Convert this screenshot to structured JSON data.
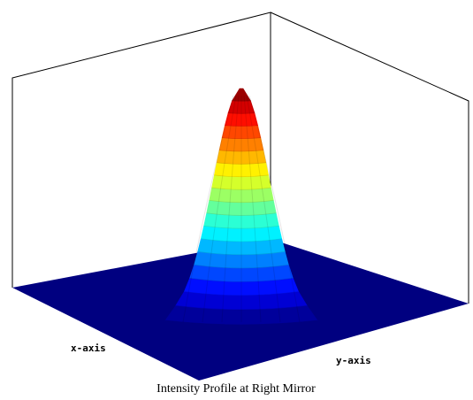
{
  "chart_data": {
    "type": "surface",
    "title": "Intensity Profile at Right Mirror",
    "xlabel": "x-axis",
    "ylabel": "y-axis",
    "zlabel": "",
    "surface": "gaussian-like peak centered on grid, flat zero floor elsewhere",
    "colormap": "jet",
    "colormap_colors": [
      "#00007f",
      "#0000ff",
      "#0080ff",
      "#00ffff",
      "#80ff80",
      "#ffff00",
      "#ff8000",
      "#ff0000",
      "#7f0000"
    ],
    "floor_color": "#000080",
    "grid": false,
    "box": true
  }
}
